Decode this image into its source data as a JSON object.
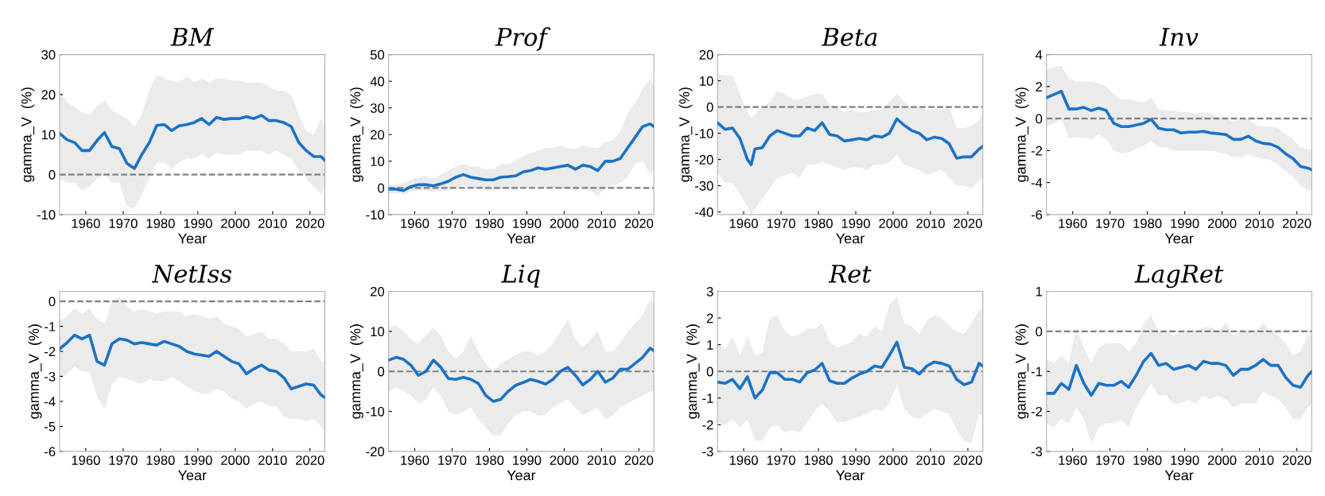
{
  "chart_data": [
    {
      "type": "line",
      "title": "BM",
      "xlabel": "Year",
      "ylabel": "gamma_V  (%)",
      "xlim": [
        1953,
        2024
      ],
      "xticks": [
        1960,
        1970,
        1980,
        1990,
        2000,
        2010,
        2020
      ],
      "ylim": [
        -10,
        30
      ],
      "yticks": [
        -10,
        0,
        10,
        20,
        30
      ],
      "x": [
        1953,
        1955,
        1957,
        1959,
        1961,
        1963,
        1965,
        1967,
        1969,
        1971,
        1973,
        1975,
        1977,
        1979,
        1981,
        1983,
        1985,
        1987,
        1989,
        1991,
        1993,
        1995,
        1997,
        1999,
        2001,
        2003,
        2005,
        2007,
        2009,
        2011,
        2013,
        2015,
        2017,
        2019,
        2021,
        2023,
        2024
      ],
      "ref_lines": [
        {
          "axis": "y",
          "value": 0,
          "color": "#808080",
          "line_style": "dashed"
        }
      ],
      "series": [
        {
          "color": "#1a72c4",
          "values": [
            10.3,
            8.7,
            8,
            6,
            6,
            8.5,
            10.5,
            7,
            6.5,
            2.8,
            1.5,
            5,
            8,
            12.3,
            12.5,
            11,
            12.2,
            12.5,
            13,
            14,
            12.5,
            14.3,
            13.8,
            14,
            14,
            14.5,
            14,
            14.8,
            13.5,
            13.5,
            13,
            12,
            8,
            6,
            4.5,
            4.5,
            3.5
          ],
          "upper": [
            21,
            18,
            17,
            15.5,
            15,
            17,
            18.5,
            16,
            15,
            14,
            12,
            15,
            21,
            25,
            24,
            23.5,
            23,
            24.5,
            23,
            24,
            23,
            24,
            24,
            23.5,
            23.5,
            23,
            23,
            23,
            22,
            21,
            21,
            20,
            15,
            11,
            10,
            14,
            12
          ],
          "lower": [
            -1,
            -2,
            -2,
            -4,
            -3,
            -1,
            0,
            -2,
            -2,
            -8,
            -8.5,
            -5,
            -1,
            3,
            3,
            1.5,
            3,
            4,
            4,
            5,
            4,
            5.5,
            5,
            5,
            5,
            6,
            6,
            6,
            5,
            6,
            5,
            4,
            1,
            -1,
            -3,
            -5,
            -3
          ]
        }
      ]
    },
    {
      "type": "line",
      "title": "Prof",
      "xlabel": "Year",
      "ylabel": "gamma_V  (%)",
      "xlim": [
        1953,
        2024
      ],
      "xticks": [
        1960,
        1970,
        1980,
        1990,
        2000,
        2010,
        2020
      ],
      "ylim": [
        -10,
        50
      ],
      "yticks": [
        -10,
        0,
        10,
        20,
        30,
        40,
        50
      ],
      "x": [
        1953,
        1955,
        1957,
        1959,
        1961,
        1963,
        1965,
        1967,
        1969,
        1971,
        1973,
        1975,
        1977,
        1979,
        1981,
        1983,
        1985,
        1987,
        1989,
        1991,
        1993,
        1995,
        1997,
        1999,
        2001,
        2003,
        2005,
        2007,
        2009,
        2011,
        2013,
        2015,
        2017,
        2019,
        2021,
        2023,
        2024
      ],
      "ref_lines": [
        {
          "axis": "y",
          "value": 0,
          "color": "#808080",
          "line_style": "dashed"
        }
      ],
      "series": [
        {
          "color": "#1a72c4",
          "values": [
            -0.5,
            -0.5,
            -1,
            0.5,
            1.2,
            1.2,
            0.8,
            1.5,
            2.5,
            4,
            5,
            4,
            3.5,
            3,
            3,
            4,
            4.2,
            4.5,
            6,
            6.5,
            7.5,
            7,
            7.5,
            8,
            8.5,
            7,
            8.5,
            8,
            6.5,
            10,
            10,
            11,
            15,
            19,
            23,
            24,
            23
          ],
          "upper": [
            1,
            1,
            2,
            3,
            4,
            4.5,
            3.5,
            5,
            6.5,
            8,
            9,
            8,
            8,
            7,
            7,
            9,
            9,
            10,
            12,
            13,
            14,
            15,
            15,
            16,
            15,
            14.5,
            16,
            15,
            15,
            17,
            18,
            21,
            28,
            32,
            37,
            41,
            38
          ],
          "lower": [
            -2,
            -2,
            -2.5,
            -1.5,
            -1,
            -1,
            -1.5,
            -1,
            -1,
            0,
            1,
            0,
            0,
            -1,
            -1,
            -0.5,
            -0.5,
            -1,
            0,
            0,
            0.5,
            0,
            0,
            -0.5,
            0,
            -1,
            0,
            -1,
            -3,
            0,
            1,
            2,
            4,
            9,
            10,
            5,
            7
          ]
        }
      ]
    },
    {
      "type": "line",
      "title": "Beta",
      "xlabel": "Year",
      "ylabel": "gamma_V  (%)",
      "xlim": [
        1953,
        2024
      ],
      "xticks": [
        1960,
        1970,
        1980,
        1990,
        2000,
        2010,
        2020
      ],
      "ylim": [
        -41,
        20
      ],
      "yticks": [
        -40,
        -30,
        -20,
        -10,
        0,
        10,
        20
      ],
      "x": [
        1953,
        1955,
        1957,
        1959,
        1961,
        1962,
        1963,
        1965,
        1967,
        1969,
        1971,
        1973,
        1975,
        1977,
        1979,
        1981,
        1983,
        1985,
        1987,
        1989,
        1991,
        1993,
        1995,
        1997,
        1999,
        2001,
        2003,
        2005,
        2007,
        2009,
        2011,
        2013,
        2015,
        2017,
        2019,
        2021,
        2023,
        2024
      ],
      "ref_lines": [
        {
          "axis": "y",
          "value": 0,
          "color": "#808080",
          "line_style": "dashed"
        }
      ],
      "series": [
        {
          "color": "#1a72c4",
          "values": [
            -6,
            -8.5,
            -8,
            -12,
            -20,
            -22,
            -16,
            -15.5,
            -11,
            -9,
            -10,
            -11,
            -11,
            -8,
            -9,
            -6,
            -10.5,
            -11,
            -13,
            -12.5,
            -12,
            -12.5,
            -11,
            -11.5,
            -10,
            -4.5,
            -7,
            -9,
            -10,
            -12.5,
            -11.5,
            -12,
            -14,
            -19.5,
            -19,
            -19,
            -16,
            -15
          ],
          "upper": [
            13,
            12,
            12,
            5,
            -2,
            -4,
            -3,
            0,
            2,
            6,
            5,
            3,
            3,
            4,
            5,
            5,
            1,
            0,
            -2,
            -1,
            -2,
            -2,
            -1,
            -1,
            2,
            5,
            2,
            0,
            0,
            -1,
            -1,
            -1,
            0,
            -8,
            -8,
            -7,
            -5,
            -2
          ],
          "lower": [
            -25,
            -29,
            -29,
            -33,
            -38,
            -41,
            -39,
            -35,
            -31,
            -27,
            -26,
            -25,
            -27,
            -22,
            -22,
            -21,
            -22,
            -23,
            -24,
            -23,
            -23,
            -24,
            -22,
            -22,
            -21,
            -18,
            -22,
            -23,
            -24,
            -26,
            -25,
            -24,
            -27,
            -30,
            -30,
            -31,
            -28,
            -27
          ]
        }
      ]
    },
    {
      "type": "line",
      "title": "Inv",
      "xlabel": "Year",
      "ylabel": "gamma_V  (%)",
      "xlim": [
        1953,
        2024
      ],
      "xticks": [
        1960,
        1970,
        1980,
        1990,
        2000,
        2010,
        2020
      ],
      "ylim": [
        -6,
        4
      ],
      "yticks": [
        -6,
        -4,
        -2,
        0,
        2,
        4
      ],
      "x": [
        1953,
        1955,
        1957,
        1959,
        1961,
        1963,
        1965,
        1967,
        1969,
        1971,
        1973,
        1975,
        1977,
        1979,
        1981,
        1983,
        1985,
        1987,
        1989,
        1991,
        1993,
        1995,
        1997,
        1999,
        2001,
        2003,
        2005,
        2007,
        2009,
        2011,
        2013,
        2015,
        2017,
        2019,
        2021,
        2023,
        2024
      ],
      "ref_lines": [
        {
          "axis": "y",
          "value": 0,
          "color": "#808080",
          "line_style": "dashed"
        }
      ],
      "series": [
        {
          "color": "#1a72c4",
          "values": [
            1.3,
            1.5,
            1.7,
            0.6,
            0.6,
            0.7,
            0.5,
            0.65,
            0.5,
            -0.3,
            -0.5,
            -0.5,
            -0.4,
            -0.3,
            -0.05,
            -0.6,
            -0.7,
            -0.7,
            -0.9,
            -0.85,
            -0.85,
            -0.8,
            -0.9,
            -0.95,
            -1,
            -1.3,
            -1.3,
            -1.1,
            -1.4,
            -1.55,
            -1.6,
            -1.8,
            -2.2,
            -2.5,
            -3,
            -3.1,
            -3.2
          ],
          "upper": [
            3,
            3.2,
            3.3,
            2.5,
            2.3,
            2.3,
            2.3,
            2.2,
            2,
            1.5,
            1.2,
            1.2,
            1.1,
            1,
            1.3,
            0.6,
            0.5,
            0.5,
            0.4,
            0.4,
            0.3,
            0.4,
            0.3,
            0.1,
            0,
            -0.2,
            0,
            0,
            -0.4,
            -0.5,
            -0.5,
            -0.6,
            -1,
            -1.3,
            -1.8,
            -1.9,
            -2
          ],
          "lower": [
            -0.5,
            -0.3,
            0,
            -1.2,
            -1.2,
            -1.2,
            -1.3,
            -1,
            -1.3,
            -2,
            -2.2,
            -2.1,
            -1.9,
            -1.7,
            -1.4,
            -1.8,
            -1.8,
            -2,
            -2,
            -2,
            -2,
            -2,
            -2,
            -2.1,
            -2.2,
            -2.4,
            -2.4,
            -2.2,
            -2.4,
            -2.5,
            -2.6,
            -2.9,
            -3.3,
            -3.6,
            -4.2,
            -4.5,
            -4.4
          ]
        }
      ]
    },
    {
      "type": "line",
      "title": "NetIss",
      "xlabel": "Year",
      "ylabel": "gamma_V  (%)",
      "xlim": [
        1953,
        2024
      ],
      "xticks": [
        1960,
        1970,
        1980,
        1990,
        2000,
        2010,
        2020
      ],
      "ylim": [
        -6,
        0.4
      ],
      "yticks": [
        -6,
        -5,
        -4,
        -3,
        -2,
        -1,
        0
      ],
      "x": [
        1953,
        1955,
        1957,
        1959,
        1961,
        1963,
        1965,
        1967,
        1969,
        1971,
        1973,
        1975,
        1977,
        1979,
        1981,
        1983,
        1985,
        1987,
        1989,
        1991,
        1993,
        1995,
        1997,
        1999,
        2001,
        2003,
        2005,
        2007,
        2009,
        2011,
        2013,
        2015,
        2017,
        2019,
        2021,
        2023,
        2024
      ],
      "ref_lines": [
        {
          "axis": "y",
          "value": 0,
          "color": "#808080",
          "line_style": "dashed"
        }
      ],
      "series": [
        {
          "color": "#1a72c4",
          "values": [
            -1.9,
            -1.65,
            -1.35,
            -1.5,
            -1.35,
            -2.4,
            -2.55,
            -1.7,
            -1.5,
            -1.55,
            -1.7,
            -1.65,
            -1.7,
            -1.75,
            -1.6,
            -1.7,
            -1.8,
            -2,
            -2.1,
            -2.15,
            -2.2,
            -2,
            -2.2,
            -2.4,
            -2.5,
            -2.9,
            -2.7,
            -2.55,
            -2.75,
            -2.8,
            -3.05,
            -3.5,
            -3.4,
            -3.3,
            -3.35,
            -3.75,
            -3.85
          ],
          "upper": [
            -0.8,
            -0.6,
            -0.3,
            -0.5,
            -0.3,
            -0.7,
            -0.9,
            0,
            0.2,
            -0.2,
            -0.4,
            -0.3,
            -0.4,
            -0.5,
            -0.4,
            -0.4,
            -0.4,
            -0.6,
            -0.5,
            -0.6,
            -0.7,
            -0.6,
            -0.9,
            -1,
            -1.1,
            -1.4,
            -1.3,
            -1.2,
            -1.5,
            -1.5,
            -1.7,
            -2,
            -2,
            -2,
            -1.9,
            -2.4,
            -2.4
          ],
          "lower": [
            -3.1,
            -2.9,
            -2.6,
            -2.8,
            -2.8,
            -3.8,
            -4.3,
            -3.3,
            -3,
            -3.1,
            -3.2,
            -3.3,
            -3.1,
            -3.2,
            -3.2,
            -3,
            -3.2,
            -3.4,
            -3.6,
            -3.7,
            -3.7,
            -3.5,
            -3.6,
            -3.9,
            -4,
            -4.3,
            -4.1,
            -4,
            -4.2,
            -4.2,
            -4.6,
            -4.7,
            -4.7,
            -4.8,
            -4.7,
            -5,
            -5.3
          ]
        }
      ]
    },
    {
      "type": "line",
      "title": "Liq",
      "xlabel": "Year",
      "ylabel": "gamma_V  (%)",
      "xlim": [
        1953,
        2024
      ],
      "xticks": [
        1960,
        1970,
        1980,
        1990,
        2000,
        2010,
        2020
      ],
      "ylim": [
        -20,
        20
      ],
      "yticks": [
        -20,
        -10,
        0,
        10,
        20
      ],
      "x": [
        1953,
        1955,
        1957,
        1959,
        1961,
        1963,
        1965,
        1967,
        1969,
        1971,
        1973,
        1975,
        1977,
        1979,
        1981,
        1983,
        1985,
        1987,
        1989,
        1991,
        1993,
        1995,
        1997,
        1999,
        2001,
        2003,
        2005,
        2007,
        2009,
        2011,
        2013,
        2015,
        2017,
        2019,
        2021,
        2023,
        2024
      ],
      "ref_lines": [
        {
          "axis": "y",
          "value": 0,
          "color": "#808080",
          "line_style": "dashed"
        }
      ],
      "series": [
        {
          "color": "#1a72c4",
          "values": [
            2.8,
            3.5,
            3,
            1.5,
            -1,
            0,
            2.8,
            1,
            -1.8,
            -2,
            -1.5,
            -2,
            -3,
            -6,
            -7.5,
            -7,
            -5,
            -3.5,
            -2.8,
            -2,
            -2.5,
            -3.2,
            -2,
            0,
            1,
            -1,
            -3.4,
            -2,
            0,
            -2.7,
            -1.7,
            0.5,
            0.5,
            2,
            3.5,
            5.8,
            5.2
          ],
          "upper": [
            11,
            11.5,
            10,
            8,
            7,
            9,
            11,
            9,
            5,
            3,
            5,
            9,
            5,
            2,
            0,
            2,
            3,
            4,
            5,
            5,
            4,
            5,
            7,
            10,
            13,
            8,
            6,
            8,
            10,
            5,
            5,
            7,
            10,
            12,
            14,
            18,
            17
          ],
          "lower": [
            -5,
            -4,
            -5,
            -6,
            -8,
            -7,
            -4,
            -6,
            -10,
            -11,
            -10,
            -9,
            -12,
            -14,
            -16,
            -16,
            -13,
            -11,
            -10,
            -10,
            -11,
            -11,
            -9,
            -8,
            -7,
            -9,
            -11,
            -10,
            -9,
            -12,
            -11,
            -9,
            -8,
            -7,
            -6,
            -5,
            -5
          ]
        }
      ]
    },
    {
      "type": "line",
      "title": "Ret",
      "xlabel": "Year",
      "ylabel": "gamma_V  (%)",
      "xlim": [
        1953,
        2024
      ],
      "xticks": [
        1960,
        1970,
        1980,
        1990,
        2000,
        2010,
        2020
      ],
      "ylim": [
        -3,
        3
      ],
      "yticks": [
        -3,
        -2,
        -1,
        0,
        1,
        2,
        3
      ],
      "x": [
        1953,
        1955,
        1957,
        1959,
        1961,
        1963,
        1965,
        1967,
        1969,
        1971,
        1973,
        1975,
        1977,
        1979,
        1981,
        1983,
        1985,
        1987,
        1989,
        1991,
        1993,
        1995,
        1997,
        1999,
        2001,
        2003,
        2005,
        2007,
        2009,
        2011,
        2013,
        2015,
        2017,
        2019,
        2021,
        2023,
        2024
      ],
      "ref_lines": [
        {
          "axis": "y",
          "value": 0,
          "color": "#808080",
          "line_style": "dashed"
        }
      ],
      "series": [
        {
          "color": "#1a72c4",
          "values": [
            -0.4,
            -0.45,
            -0.3,
            -0.65,
            -0.2,
            -1,
            -0.7,
            -0.05,
            -0.05,
            -0.3,
            -0.3,
            -0.4,
            -0.05,
            0.05,
            0.3,
            -0.35,
            -0.45,
            -0.45,
            -0.25,
            -0.1,
            0,
            0.2,
            0.15,
            0.6,
            1.1,
            0.15,
            0.1,
            -0.1,
            0.2,
            0.35,
            0.3,
            0.2,
            -0.3,
            -0.5,
            -0.4,
            0.3,
            0.2
          ],
          "upper": [
            1.1,
            0.8,
            1.3,
            0.6,
            1.3,
            0.6,
            0.7,
            2,
            2.1,
            1.5,
            1.3,
            1.4,
            1.6,
            1.6,
            1.8,
            1.1,
            0.9,
            1,
            1.1,
            1.4,
            1.3,
            1.7,
            1.5,
            2.5,
            2.8,
            1.8,
            1.7,
            1.4,
            1.9,
            2.1,
            2,
            1.7,
            1.5,
            1.4,
            1.8,
            2.3,
            2.3
          ],
          "lower": [
            -1.9,
            -2,
            -1.8,
            -2.1,
            -1.8,
            -2.6,
            -2.6,
            -2.1,
            -2,
            -2.3,
            -2.2,
            -2.3,
            -1.9,
            -1.5,
            -1.2,
            -1.5,
            -1.9,
            -1.9,
            -1.8,
            -1.7,
            -1.6,
            -1.4,
            -1.5,
            -1.2,
            -0.5,
            -1.4,
            -1.7,
            -1.8,
            -1.6,
            -1.4,
            -1.5,
            -1.6,
            -2.2,
            -2.6,
            -2.7,
            -1.6,
            -1.7
          ]
        }
      ]
    },
    {
      "type": "line",
      "title": "LagRet",
      "xlabel": "Year",
      "ylabel": "gamma_V  (%)",
      "xlim": [
        1953,
        2024
      ],
      "xticks": [
        1960,
        1970,
        1980,
        1990,
        2000,
        2010,
        2020
      ],
      "ylim": [
        -3,
        1
      ],
      "yticks": [
        -3,
        -2,
        -1,
        0,
        1
      ],
      "x": [
        1953,
        1955,
        1957,
        1959,
        1961,
        1963,
        1965,
        1967,
        1969,
        1971,
        1973,
        1975,
        1977,
        1979,
        1981,
        1983,
        1985,
        1987,
        1989,
        1991,
        1993,
        1995,
        1997,
        1999,
        2001,
        2003,
        2005,
        2007,
        2009,
        2011,
        2013,
        2015,
        2017,
        2019,
        2021,
        2023,
        2024
      ],
      "ref_lines": [
        {
          "axis": "y",
          "value": 0,
          "color": "#808080",
          "line_style": "dashed"
        }
      ],
      "series": [
        {
          "color": "#1a72c4",
          "values": [
            -1.55,
            -1.55,
            -1.3,
            -1.45,
            -0.85,
            -1.3,
            -1.6,
            -1.3,
            -1.35,
            -1.35,
            -1.25,
            -1.4,
            -1.1,
            -0.75,
            -0.55,
            -0.85,
            -0.8,
            -0.95,
            -0.9,
            -0.85,
            -0.95,
            -0.75,
            -0.8,
            -0.8,
            -0.85,
            -1.1,
            -0.95,
            -0.95,
            -0.85,
            -0.7,
            -0.85,
            -0.85,
            -1.15,
            -1.35,
            -1.4,
            -1.1,
            -1
          ],
          "upper": [
            -0.7,
            -0.8,
            -0.6,
            -0.8,
            0.1,
            -0.4,
            -0.8,
            -0.4,
            -0.3,
            -0.3,
            -0.3,
            -0.5,
            -0.3,
            0.2,
            0.4,
            0,
            0,
            -0.1,
            0,
            0,
            0,
            0.1,
            0.1,
            0,
            0.2,
            -0.1,
            0,
            0,
            0,
            0.2,
            0,
            -0.1,
            -0.3,
            -0.6,
            -0.5,
            -0.1,
            -0.1
          ],
          "lower": [
            -2.3,
            -2.4,
            -2.2,
            -2.3,
            -1.9,
            -2.2,
            -2.8,
            -2.4,
            -2.3,
            -2.3,
            -2.2,
            -2.4,
            -1.9,
            -1.6,
            -1.3,
            -1.6,
            -1.6,
            -1.8,
            -1.8,
            -1.7,
            -1.8,
            -1.6,
            -1.7,
            -1.6,
            -1.7,
            -1.9,
            -1.8,
            -1.8,
            -1.8,
            -1.5,
            -1.6,
            -1.7,
            -1.9,
            -2.2,
            -2.2,
            -1.9,
            -1.8
          ]
        }
      ]
    }
  ]
}
